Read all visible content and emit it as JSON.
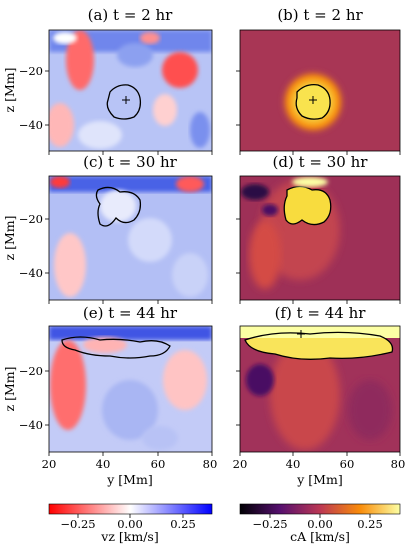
{
  "panels": [
    {
      "id": "a",
      "title": "(a) t = 2 hr",
      "field": "vz"
    },
    {
      "id": "b",
      "title": "(b) t = 2 hr",
      "field": "cA"
    },
    {
      "id": "c",
      "title": "(c) t = 30 hr",
      "field": "vz"
    },
    {
      "id": "d",
      "title": "(d) t = 30 hr",
      "field": "cA"
    },
    {
      "id": "e",
      "title": "(e) t = 44 hr",
      "field": "vz"
    },
    {
      "id": "f",
      "title": "(f) t = 44 hr",
      "field": "cA"
    }
  ],
  "axes": {
    "xlabel": "y [Mm]",
    "ylabel": "z [Mm]",
    "xticks": [
      "20",
      "40",
      "60",
      "80"
    ],
    "yticks": [
      "−20",
      "−40"
    ]
  },
  "colorbars": [
    {
      "label": "vz [km/s]",
      "ticks": [
        "−0.25",
        "0.00",
        "0.25"
      ],
      "colormap": "bwr-reversed",
      "colors": [
        "#ff0000",
        "#ffffff",
        "#0000ff"
      ]
    },
    {
      "label": "cA [km/s]",
      "ticks": [
        "−0.25",
        "0.00",
        "0.25"
      ],
      "colormap": "inferno",
      "colors": [
        "#000004",
        "#56106e",
        "#bb3754",
        "#f98c0a",
        "#fcffa4"
      ]
    }
  ],
  "chart_data": {
    "type": "heatmap",
    "xlim": [
      20,
      80
    ],
    "ylim": [
      -50,
      -5
    ],
    "grid": false,
    "colorbar_range": [
      -0.4,
      0.4
    ],
    "markers": [
      {
        "panel": "a",
        "y": 48,
        "z": -32
      },
      {
        "panel": "b",
        "y": 48,
        "z": -32
      },
      {
        "panel": "f",
        "y": 44,
        "z": -6
      }
    ]
  }
}
